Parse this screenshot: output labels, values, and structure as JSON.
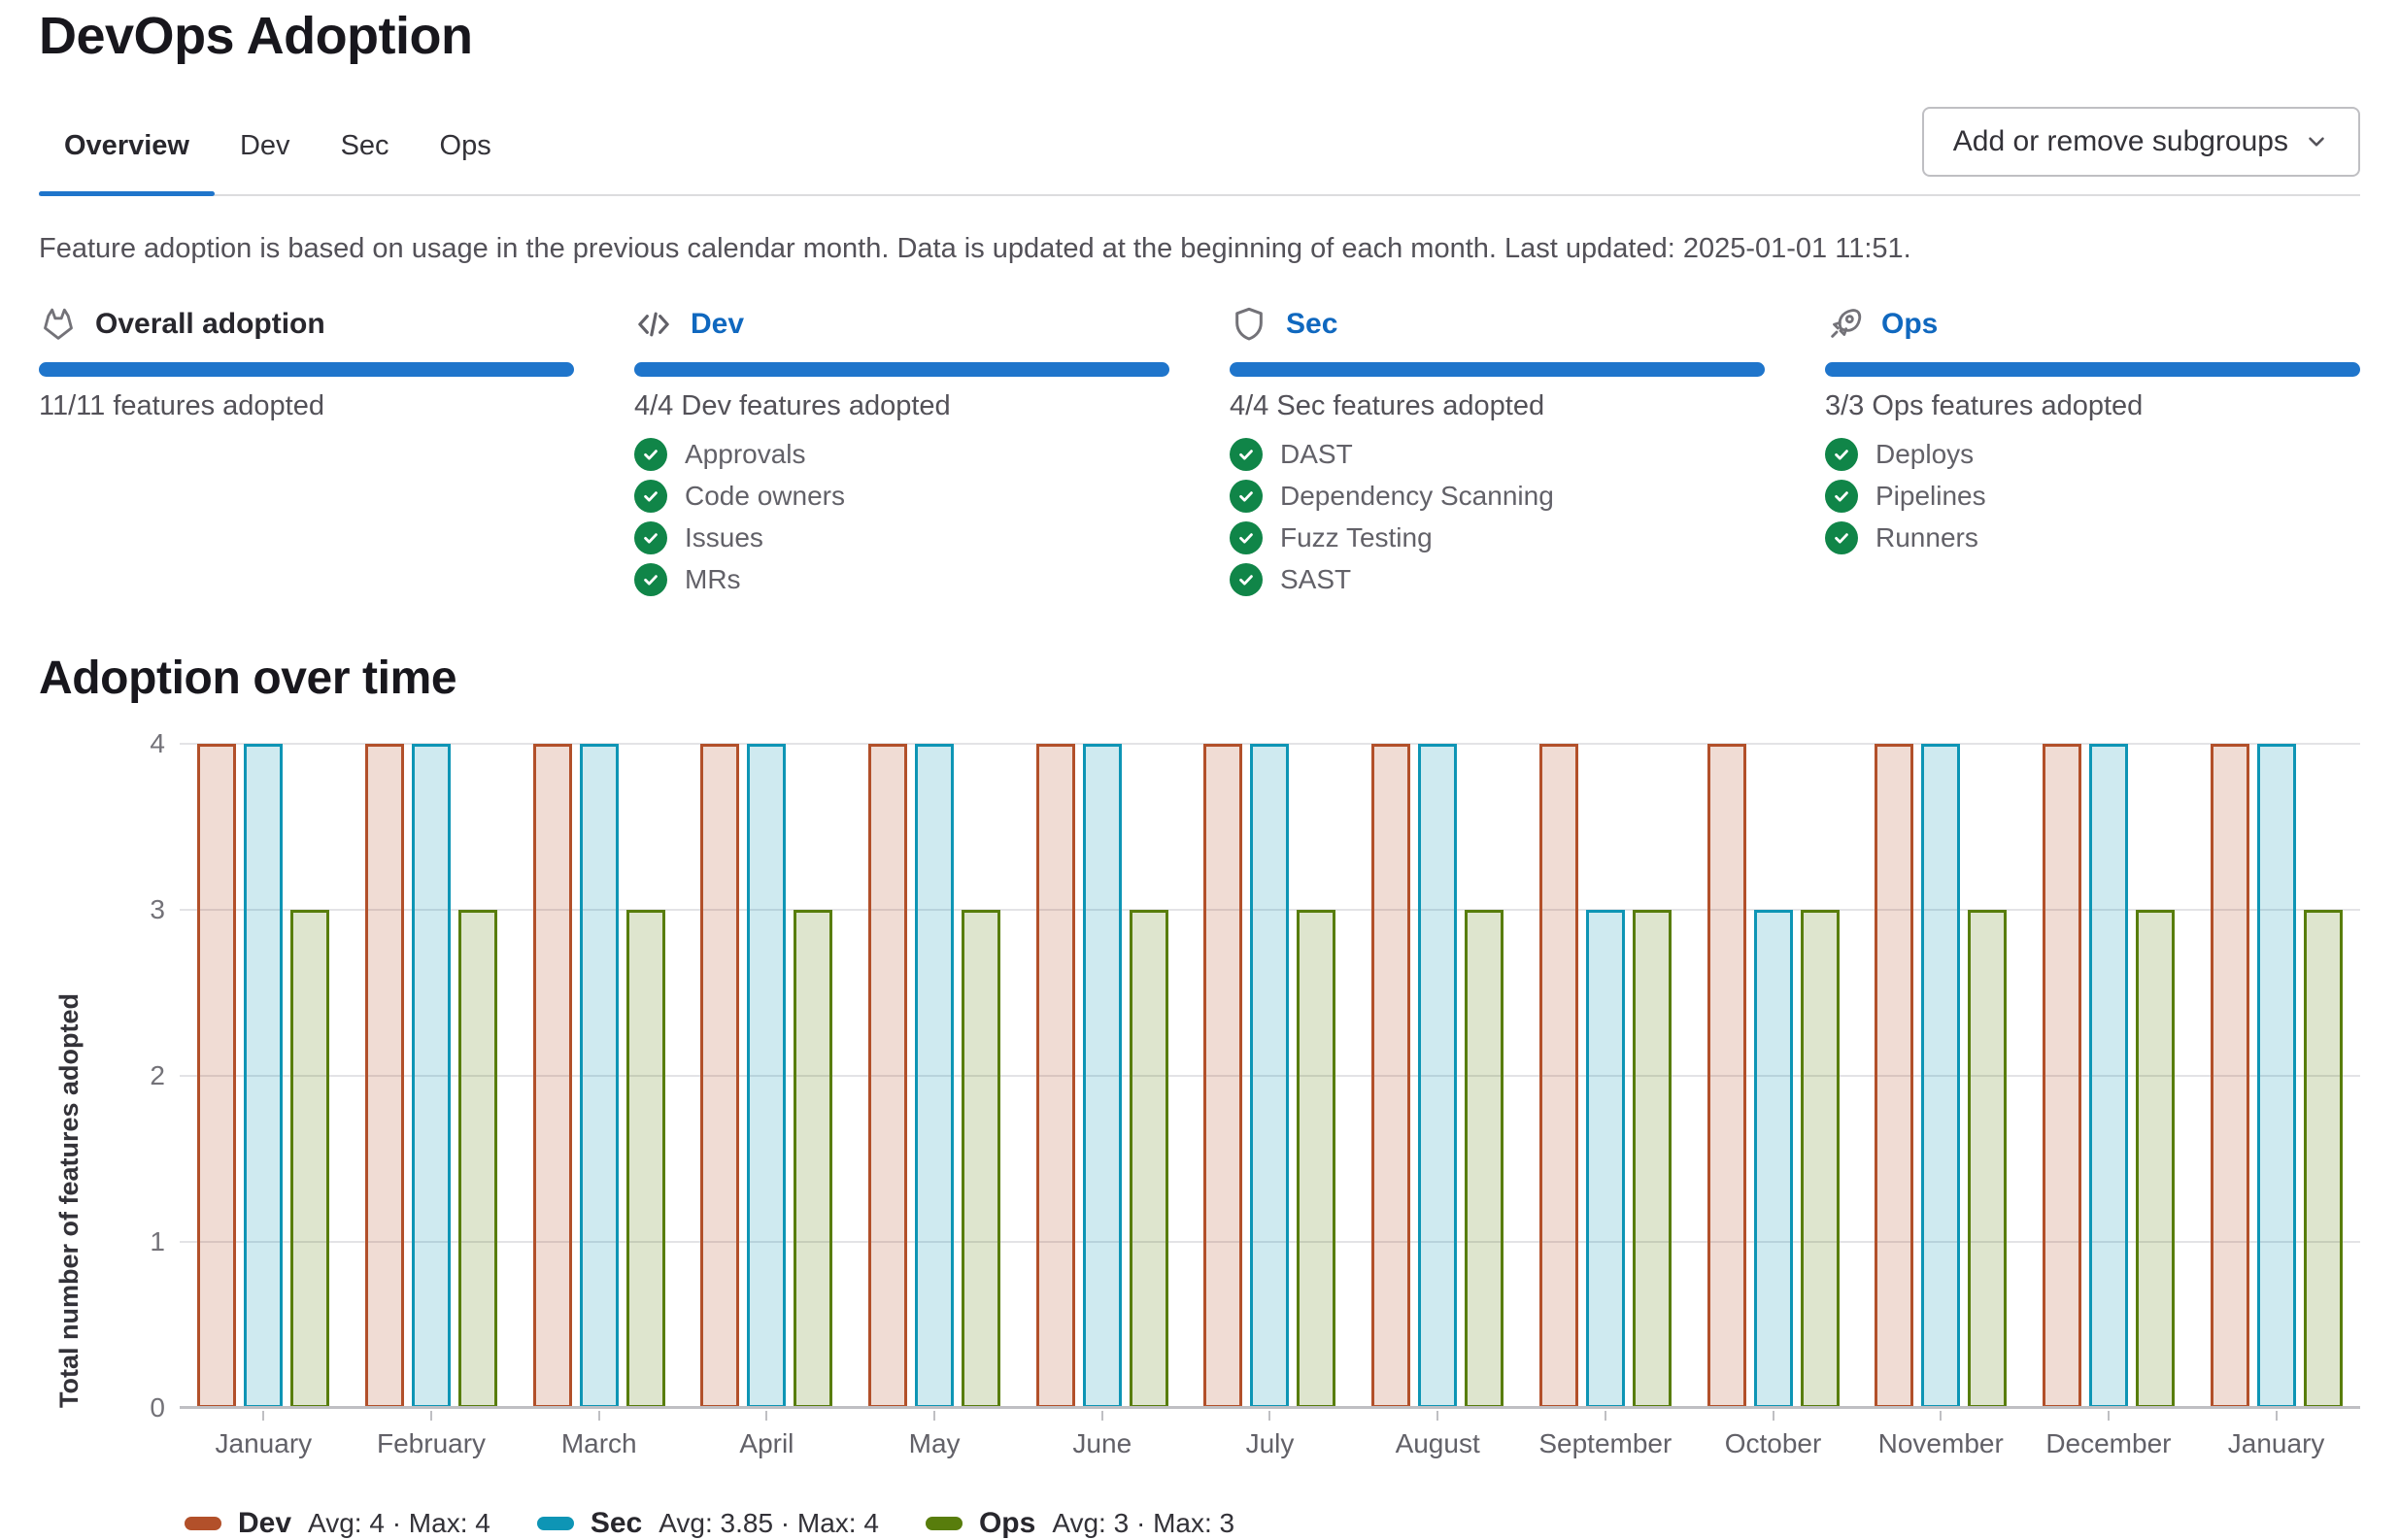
{
  "page": {
    "title": "DevOps Adoption"
  },
  "tabs": [
    {
      "label": "Overview",
      "active": true
    },
    {
      "label": "Dev",
      "active": false
    },
    {
      "label": "Sec",
      "active": false
    },
    {
      "label": "Ops",
      "active": false
    }
  ],
  "toolbar": {
    "subgroups_button_label": "Add or remove subgroups",
    "subgroups_button_icon": "chevron-down-icon"
  },
  "info_text": "Feature adoption is based on usage in the previous calendar month. Data is updated at the beginning of each month. Last updated: 2025-01-01 11:51.",
  "cards": [
    {
      "icon": "tanuki-icon",
      "title": "Overall adoption",
      "adopted_count": "11/11 features adopted",
      "progress_percent": 100,
      "items": []
    },
    {
      "icon": "code-icon",
      "title": "Dev",
      "adopted_count": "4/4 Dev features adopted",
      "progress_percent": 100,
      "items": [
        "Approvals",
        "Code owners",
        "Issues",
        "MRs"
      ]
    },
    {
      "icon": "shield-icon",
      "title": "Sec",
      "adopted_count": "4/4 Sec features adopted",
      "progress_percent": 100,
      "items": [
        "DAST",
        "Dependency Scanning",
        "Fuzz Testing",
        "SAST"
      ]
    },
    {
      "icon": "rocket-icon",
      "title": "Ops",
      "adopted_count": "3/3 Ops features adopted",
      "progress_percent": 100,
      "items": [
        "Deploys",
        "Pipelines",
        "Runners"
      ]
    }
  ],
  "section_title": "Adoption over time",
  "chart_data": {
    "type": "bar",
    "title": "Adoption over time",
    "xlabel": "",
    "ylabel": "Total number of features adopted",
    "ylim": [
      0,
      4
    ],
    "yticks": [
      0,
      1,
      2,
      3,
      4
    ],
    "grid": true,
    "legend_position": "bottom",
    "categories": [
      "January",
      "February",
      "March",
      "April",
      "May",
      "June",
      "July",
      "August",
      "September",
      "October",
      "November",
      "December",
      "January"
    ],
    "series": [
      {
        "name": "Dev",
        "values": [
          4,
          4,
          4,
          4,
          4,
          4,
          4,
          4,
          4,
          4,
          4,
          4,
          4
        ],
        "stroke": "#b2502a",
        "fill": "rgba(178,80,42,0.2)",
        "legend_stats": "Avg: 4 · Max: 4"
      },
      {
        "name": "Sec",
        "values": [
          4,
          4,
          4,
          4,
          4,
          4,
          4,
          4,
          3,
          3,
          4,
          4,
          4
        ],
        "stroke": "#0e95b5",
        "fill": "rgba(14,149,181,0.2)",
        "legend_stats": "Avg: 3.85 · Max: 4"
      },
      {
        "name": "Ops",
        "values": [
          3,
          3,
          3,
          3,
          3,
          3,
          3,
          3,
          3,
          3,
          3,
          3,
          3
        ],
        "stroke": "#587d0c",
        "fill": "rgba(88,125,12,0.2)",
        "legend_stats": "Avg: 3 · Max: 3"
      }
    ]
  },
  "colors": {
    "accent_blue": "#1f75cb",
    "link_blue": "#1068bf",
    "check_green": "#108548",
    "tab_underline": "#1f75cb",
    "gridline": "#e3e3e6",
    "axis_line": "#bfbfc3"
  }
}
